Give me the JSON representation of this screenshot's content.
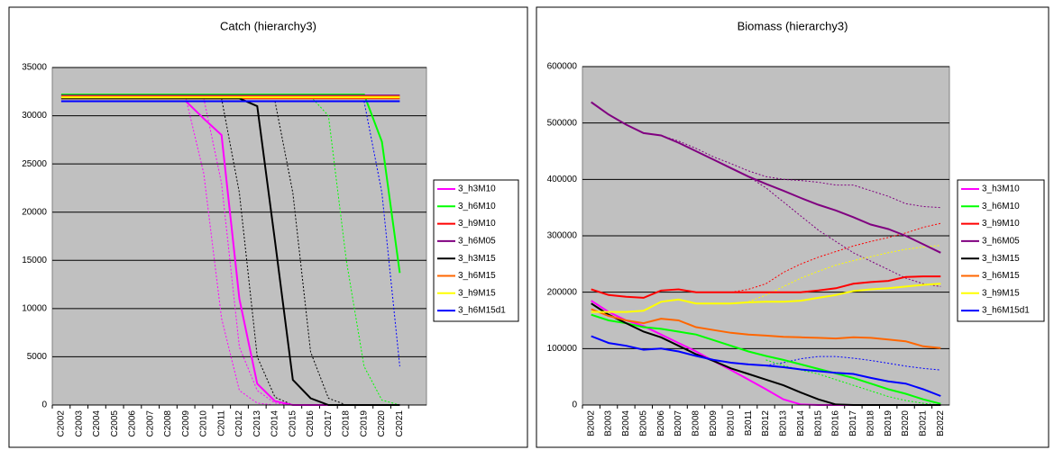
{
  "chart_data": [
    {
      "type": "line",
      "title": "Catch (hierarchy3)",
      "grid": true,
      "legend": "right",
      "plot_background": "#c0c0c0",
      "categories": [
        "C2002",
        "C2003",
        "C2004",
        "C2005",
        "C2006",
        "C2007",
        "C2008",
        "C2009",
        "C2010",
        "C2011",
        "C2012",
        "C2013",
        "C2014",
        "C2015",
        "C2016",
        "C2017",
        "C2018",
        "C2019",
        "C2020",
        "C2021",
        null
      ],
      "ylim": [
        0,
        35000
      ],
      "yticks": [
        0,
        5000,
        10000,
        15000,
        20000,
        25000,
        30000,
        35000
      ],
      "series": [
        {
          "name": "3_h3M10",
          "color": "#ff00ff",
          "values": [
            31500,
            31500,
            31500,
            31500,
            31500,
            31500,
            31500,
            31500,
            29700,
            28000,
            11000,
            2200,
            400,
            0,
            0,
            0,
            0,
            0,
            0,
            0,
            null
          ]
        },
        {
          "name": "3_h6M10",
          "color": "#00ff00",
          "values": [
            32200,
            32200,
            32200,
            32200,
            32200,
            32200,
            32200,
            32200,
            32200,
            32200,
            32200,
            32200,
            32200,
            32200,
            32200,
            32200,
            32200,
            32200,
            27300,
            13700,
            null
          ]
        },
        {
          "name": "3_h9M10",
          "color": "#ff0000",
          "values": [
            31800,
            31800,
            31800,
            31800,
            31800,
            31800,
            31800,
            31800,
            31800,
            31800,
            31800,
            31800,
            31800,
            31800,
            31800,
            31800,
            31800,
            31800,
            31800,
            31800,
            null
          ]
        },
        {
          "name": "3_h6M05",
          "color": "#800080",
          "values": [
            32100,
            32100,
            32100,
            32100,
            32100,
            32100,
            32100,
            32100,
            32100,
            32100,
            32100,
            32100,
            32100,
            32100,
            32100,
            32100,
            32100,
            32100,
            32100,
            32100,
            null
          ]
        },
        {
          "name": "3_h3M15",
          "color": "#000000",
          "values": [
            31800,
            31800,
            31800,
            31800,
            31800,
            31800,
            31800,
            31800,
            31800,
            31800,
            31800,
            31000,
            17000,
            2600,
            700,
            0,
            0,
            0,
            0,
            0,
            null
          ]
        },
        {
          "name": "3_h6M15",
          "color": "#ff6600",
          "values": [
            32000,
            32000,
            32000,
            32000,
            32000,
            32000,
            32000,
            32000,
            32000,
            32000,
            32000,
            32000,
            32000,
            32000,
            32000,
            32000,
            32000,
            32000,
            32000,
            32000,
            null
          ]
        },
        {
          "name": "3_h9M15",
          "color": "#ffff00",
          "values": [
            31900,
            31900,
            31900,
            31900,
            31900,
            31900,
            31900,
            31900,
            31900,
            31900,
            31900,
            31900,
            31900,
            31900,
            31900,
            31900,
            31900,
            31900,
            31900,
            31900,
            null
          ]
        },
        {
          "name": "3_h6M15d1",
          "color": "#0000ff",
          "values": [
            31500,
            31500,
            31500,
            31500,
            31500,
            31500,
            31500,
            31500,
            31500,
            31500,
            31500,
            31500,
            31500,
            31500,
            31500,
            31500,
            31500,
            31500,
            31500,
            31500,
            null
          ]
        },
        {
          "color": "#ff00ff",
          "dash": "dotted",
          "values": [
            null,
            null,
            null,
            null,
            null,
            null,
            null,
            31800,
            24000,
            9000,
            1500,
            200,
            0,
            null,
            null,
            null,
            null,
            null,
            null,
            null,
            null
          ]
        },
        {
          "color": "#ff00ff",
          "dash": "dotted",
          "values": [
            null,
            null,
            null,
            null,
            null,
            null,
            null,
            null,
            31800,
            23000,
            6000,
            1500,
            200,
            0,
            null,
            null,
            null,
            null,
            null,
            null,
            null
          ]
        },
        {
          "color": "#000000",
          "dash": "dotted",
          "values": [
            null,
            null,
            null,
            null,
            null,
            null,
            null,
            null,
            null,
            31800,
            22000,
            5000,
            800,
            0,
            null,
            null,
            null,
            null,
            null,
            null,
            null
          ]
        },
        {
          "color": "#000000",
          "dash": "dotted",
          "values": [
            null,
            null,
            null,
            null,
            null,
            null,
            null,
            null,
            null,
            null,
            null,
            null,
            31500,
            22000,
            5500,
            700,
            0,
            null,
            null,
            null,
            null
          ]
        },
        {
          "color": "#00ff00",
          "dash": "dotted",
          "values": [
            null,
            null,
            null,
            null,
            null,
            null,
            null,
            null,
            null,
            null,
            null,
            null,
            null,
            null,
            32000,
            30000,
            15000,
            4000,
            500,
            0,
            null
          ]
        },
        {
          "color": "#0000ff",
          "dash": "dotted",
          "values": [
            null,
            null,
            null,
            null,
            null,
            null,
            null,
            null,
            null,
            null,
            null,
            null,
            null,
            null,
            null,
            null,
            null,
            31500,
            22000,
            4000,
            null
          ]
        }
      ]
    },
    {
      "type": "line",
      "title": "Biomass (hierarchy3)",
      "grid": true,
      "legend": "right",
      "plot_background": "#c0c0c0",
      "categories": [
        "B2002",
        "B2003",
        "B2004",
        "B2005",
        "B2006",
        "B2007",
        "B2008",
        "B2009",
        "B2010",
        "B2011",
        "B2012",
        "B2013",
        "B2014",
        "B2015",
        "B2016",
        "B2017",
        "B2018",
        "B2019",
        "B2020",
        "B2021",
        "B2022"
      ],
      "ylim": [
        0,
        600000
      ],
      "yticks": [
        0,
        100000,
        200000,
        300000,
        400000,
        500000,
        600000
      ],
      "series": [
        {
          "name": "3_h3M10",
          "color": "#ff00ff",
          "values": [
            185000,
            165000,
            150000,
            140000,
            125000,
            110000,
            95000,
            78000,
            62000,
            45000,
            28000,
            10000,
            1000,
            0,
            0,
            0,
            0,
            0,
            0,
            0,
            0
          ]
        },
        {
          "name": "3_h6M10",
          "color": "#00ff00",
          "values": [
            160000,
            150000,
            145000,
            138000,
            135000,
            130000,
            125000,
            115000,
            105000,
            95000,
            87000,
            80000,
            72000,
            64000,
            56000,
            48000,
            38000,
            28000,
            20000,
            10000,
            2000
          ]
        },
        {
          "name": "3_h9M10",
          "color": "#ff0000",
          "values": [
            205000,
            195000,
            192000,
            190000,
            203000,
            205000,
            200000,
            200000,
            200000,
            200000,
            200000,
            200000,
            200000,
            203000,
            207000,
            215000,
            218000,
            220000,
            227000,
            228000,
            228000
          ]
        },
        {
          "name": "3_h6M05",
          "color": "#800080",
          "values": [
            537000,
            515000,
            497000,
            482000,
            478000,
            465000,
            450000,
            435000,
            420000,
            405000,
            392000,
            380000,
            367000,
            355000,
            345000,
            333000,
            320000,
            312000,
            300000,
            285000,
            270000
          ]
        },
        {
          "name": "3_h3M15",
          "color": "#000000",
          "values": [
            180000,
            160000,
            145000,
            130000,
            120000,
            105000,
            90000,
            78000,
            65000,
            55000,
            45000,
            35000,
            22000,
            10000,
            1000,
            0,
            0,
            0,
            0,
            0,
            0
          ]
        },
        {
          "name": "3_h6M15",
          "color": "#ff6600",
          "values": [
            170000,
            158000,
            150000,
            145000,
            153000,
            150000,
            138000,
            133000,
            128000,
            125000,
            123000,
            121000,
            120000,
            119000,
            118000,
            120000,
            119000,
            116000,
            113000,
            104000,
            101000
          ]
        },
        {
          "name": "3_h9M15",
          "color": "#ffff00",
          "values": [
            165000,
            165000,
            165000,
            167000,
            183000,
            187000,
            180000,
            180000,
            180000,
            182000,
            183000,
            183000,
            185000,
            190000,
            195000,
            202000,
            205000,
            207000,
            210000,
            213000,
            215000
          ]
        },
        {
          "name": "3_h6M15d1",
          "color": "#0000ff",
          "values": [
            122000,
            110000,
            105000,
            98000,
            100000,
            95000,
            87000,
            80000,
            75000,
            72000,
            70000,
            67000,
            63000,
            60000,
            57000,
            55000,
            48000,
            42000,
            38000,
            28000,
            16000
          ]
        },
        {
          "color": "#800080",
          "dash": "dotted",
          "values": [
            537000,
            515000,
            497000,
            482000,
            478000,
            468000,
            455000,
            440000,
            428000,
            415000,
            405000,
            400000,
            398000,
            395000,
            390000,
            390000,
            380000,
            370000,
            357000,
            352000,
            350000
          ]
        },
        {
          "color": "#800080",
          "dash": "dotted",
          "values": [
            null,
            null,
            null,
            null,
            null,
            null,
            null,
            null,
            null,
            405000,
            385000,
            360000,
            335000,
            310000,
            290000,
            270000,
            255000,
            240000,
            225000,
            215000,
            210000
          ]
        },
        {
          "color": "#ff0000",
          "dash": "dotted",
          "values": [
            null,
            null,
            null,
            null,
            null,
            null,
            null,
            null,
            200000,
            205000,
            215000,
            235000,
            250000,
            262000,
            272000,
            282000,
            290000,
            297000,
            305000,
            315000,
            322000
          ]
        },
        {
          "color": "#ffff00",
          "dash": "dotted",
          "values": [
            null,
            null,
            null,
            null,
            null,
            null,
            null,
            null,
            null,
            183000,
            195000,
            210000,
            225000,
            237000,
            248000,
            256000,
            263000,
            270000,
            276000,
            280000,
            283000
          ]
        },
        {
          "color": "#0000ff",
          "dash": "dotted",
          "values": [
            null,
            null,
            null,
            null,
            null,
            null,
            null,
            null,
            null,
            null,
            70000,
            75000,
            82000,
            86000,
            86000,
            83000,
            79000,
            74000,
            69000,
            65000,
            62000
          ]
        },
        {
          "color": "#00ff00",
          "dash": "dotted",
          "values": [
            null,
            null,
            null,
            null,
            null,
            null,
            null,
            null,
            null,
            null,
            80000,
            70000,
            62000,
            55000,
            45000,
            35000,
            25000,
            15000,
            8000,
            3000,
            0
          ]
        }
      ]
    }
  ]
}
